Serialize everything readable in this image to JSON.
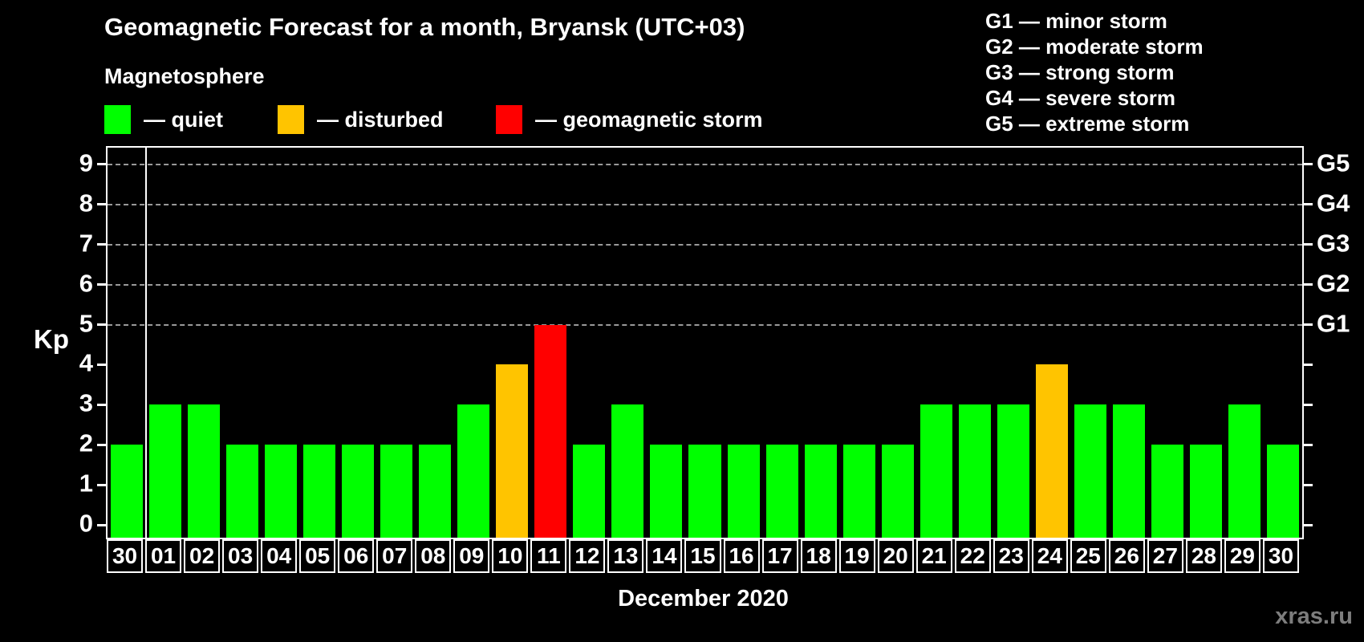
{
  "header": {
    "title": "Geomagnetic Forecast for a month, Bryansk (UTC+03)",
    "subtitle": "Magnetosphere",
    "legend": [
      {
        "status": "quiet",
        "label": "— quiet"
      },
      {
        "status": "disturbed",
        "label": "— disturbed"
      },
      {
        "status": "storm",
        "label": "— geomagnetic storm"
      }
    ],
    "g_scale_legend": [
      "G1 — minor storm",
      "G2 — moderate storm",
      "G3 — strong storm",
      "G4 — severe storm",
      "G5 — extreme storm"
    ]
  },
  "colors": {
    "quiet": "#00ff00",
    "disturbed": "#ffc400",
    "storm": "#ff0000",
    "background": "#000000",
    "text": "#ffffff",
    "gridline": "#999999",
    "watermark": "#7d7d7d"
  },
  "chart_data": {
    "type": "bar",
    "title": "Geomagnetic Forecast for a month, Bryansk (UTC+03)",
    "ylabel": "Kp",
    "xlabel": "December 2020",
    "ylim": [
      0,
      9
    ],
    "yticks": [
      0,
      1,
      2,
      3,
      4,
      5,
      6,
      7,
      8,
      9
    ],
    "gridlines_at": [
      5,
      6,
      7,
      8,
      9
    ],
    "grid": "dashed horizontal at G-storm levels only",
    "legend_position": "top",
    "categories": [
      "30",
      "01",
      "02",
      "03",
      "04",
      "05",
      "06",
      "07",
      "08",
      "09",
      "10",
      "11",
      "12",
      "13",
      "14",
      "15",
      "16",
      "17",
      "18",
      "19",
      "20",
      "21",
      "22",
      "23",
      "24",
      "25",
      "26",
      "27",
      "28",
      "29",
      "30"
    ],
    "values": [
      2,
      3,
      3,
      2,
      2,
      2,
      2,
      2,
      2,
      3,
      4,
      5,
      2,
      3,
      2,
      2,
      2,
      2,
      2,
      2,
      2,
      3,
      3,
      3,
      4,
      3,
      3,
      2,
      2,
      3,
      2
    ],
    "statuses": [
      "quiet",
      "quiet",
      "quiet",
      "quiet",
      "quiet",
      "quiet",
      "quiet",
      "quiet",
      "quiet",
      "quiet",
      "disturbed",
      "storm",
      "quiet",
      "quiet",
      "quiet",
      "quiet",
      "quiet",
      "quiet",
      "quiet",
      "quiet",
      "quiet",
      "quiet",
      "quiet",
      "quiet",
      "disturbed",
      "quiet",
      "quiet",
      "quiet",
      "quiet",
      "quiet",
      "quiet"
    ],
    "month_separator_after_index": 0,
    "right_axis": [
      {
        "label": "G1",
        "kp": 5
      },
      {
        "label": "G2",
        "kp": 6
      },
      {
        "label": "G3",
        "kp": 7
      },
      {
        "label": "G4",
        "kp": 8
      },
      {
        "label": "G5",
        "kp": 9
      }
    ]
  },
  "footer": {
    "xaxis_title": "December 2020",
    "watermark": "xras.ru"
  }
}
